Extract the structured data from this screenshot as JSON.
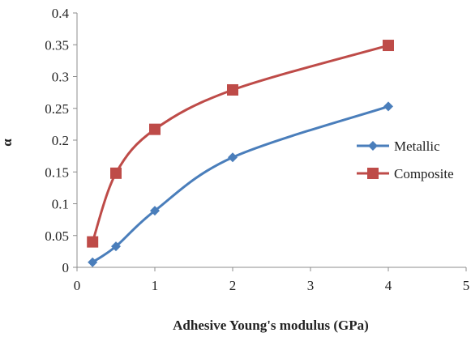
{
  "chart_data": {
    "type": "line",
    "title": "",
    "xlabel": "Adhesive Young's modulus (GPa)",
    "ylabel": "α",
    "xlim": [
      0,
      5
    ],
    "ylim": [
      0,
      0.4
    ],
    "x_ticks": [
      0,
      1,
      2,
      3,
      4,
      5
    ],
    "y_ticks": [
      0,
      0.05,
      0.1,
      0.15,
      0.2,
      0.25,
      0.3,
      0.35,
      0.4
    ],
    "grid": false,
    "legend_position": "right",
    "series": [
      {
        "name": "Metallic",
        "color": "#4a7ebb",
        "marker": "diamond",
        "x": [
          0.2,
          0.5,
          1,
          2,
          4
        ],
        "y": [
          0.008,
          0.033,
          0.089,
          0.173,
          0.253
        ]
      },
      {
        "name": "Composite",
        "color": "#be4b48",
        "marker": "square",
        "x": [
          0.2,
          0.5,
          1,
          2,
          4
        ],
        "y": [
          0.04,
          0.148,
          0.217,
          0.279,
          0.349
        ]
      }
    ]
  }
}
